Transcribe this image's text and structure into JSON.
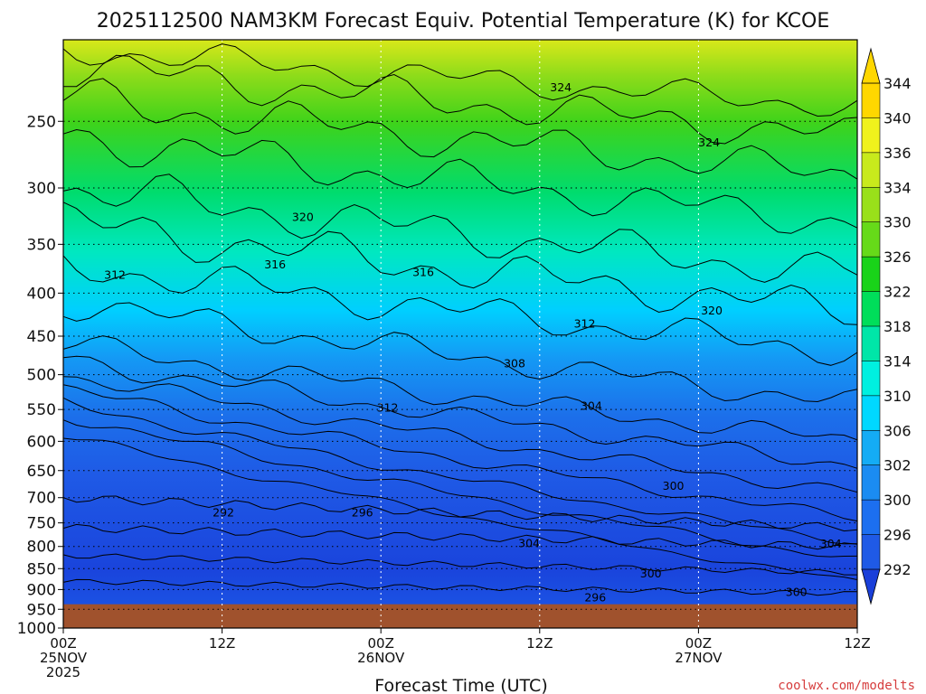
{
  "watermark": "coolwx.com/modelts",
  "chart_data": {
    "type": "contour",
    "title": "2025112500 NAM3KM Forecast Equiv. Potential Temperature (K) for KCOE",
    "xlabel": "Forecast Time (UTC)",
    "ylabel": "",
    "units": "K",
    "x_range_hours": [
      0,
      60
    ],
    "y_range_hpa": [
      200,
      1000
    ],
    "y_scale": "log-pressure",
    "y_ticks": [
      250,
      300,
      350,
      400,
      450,
      500,
      550,
      600,
      650,
      700,
      750,
      800,
      850,
      900,
      950,
      1000
    ],
    "x_ticks": [
      {
        "hour": 0,
        "lines": [
          "00Z",
          "25NOV",
          "2025"
        ]
      },
      {
        "hour": 12,
        "lines": [
          "12Z"
        ]
      },
      {
        "hour": 24,
        "lines": [
          "00Z",
          "26NOV"
        ]
      },
      {
        "hour": 36,
        "lines": [
          "12Z"
        ]
      },
      {
        "hour": 48,
        "lines": [
          "00Z",
          "27NOV"
        ]
      },
      {
        "hour": 60,
        "lines": [
          "12Z"
        ]
      }
    ],
    "surface_pressure_hpa": 937,
    "colorbar": {
      "levels": [
        292,
        296,
        300,
        302,
        306,
        310,
        314,
        318,
        322,
        326,
        330,
        334,
        336,
        340,
        344
      ],
      "colors": [
        "#1a3fd9",
        "#1f5ae6",
        "#1c6ff0",
        "#1b8cf2",
        "#14acf5",
        "#00d8ff",
        "#00f0e0",
        "#00e6a8",
        "#00de5a",
        "#19d319",
        "#66da19",
        "#99e01a",
        "#c8ea1c",
        "#f0f21c",
        "#ffd700"
      ],
      "extend": "both"
    },
    "contour_labels": [
      {
        "value": "324",
        "hour": 37.6,
        "hpa": 228
      },
      {
        "value": "324",
        "hour": 48.8,
        "hpa": 265
      },
      {
        "value": "320",
        "hour": 18.1,
        "hpa": 325
      },
      {
        "value": "316",
        "hour": 16.0,
        "hpa": 370
      },
      {
        "value": "316",
        "hour": 27.2,
        "hpa": 378
      },
      {
        "value": "312",
        "hour": 3.9,
        "hpa": 381
      },
      {
        "value": "320",
        "hour": 49.0,
        "hpa": 420
      },
      {
        "value": "312",
        "hour": 39.4,
        "hpa": 435
      },
      {
        "value": "308",
        "hour": 34.1,
        "hpa": 485
      },
      {
        "value": "304",
        "hour": 39.9,
        "hpa": 545
      },
      {
        "value": "312",
        "hour": 24.5,
        "hpa": 548
      },
      {
        "value": "300",
        "hour": 46.1,
        "hpa": 678
      },
      {
        "value": "292",
        "hour": 12.1,
        "hpa": 730
      },
      {
        "value": "296",
        "hour": 22.6,
        "hpa": 730
      },
      {
        "value": "304",
        "hour": 35.2,
        "hpa": 794
      },
      {
        "value": "304",
        "hour": 58.0,
        "hpa": 795
      },
      {
        "value": "300",
        "hour": 44.4,
        "hpa": 862
      },
      {
        "value": "300",
        "hour": 55.4,
        "hpa": 907
      },
      {
        "value": "296",
        "hour": 40.2,
        "hpa": 920
      }
    ]
  }
}
